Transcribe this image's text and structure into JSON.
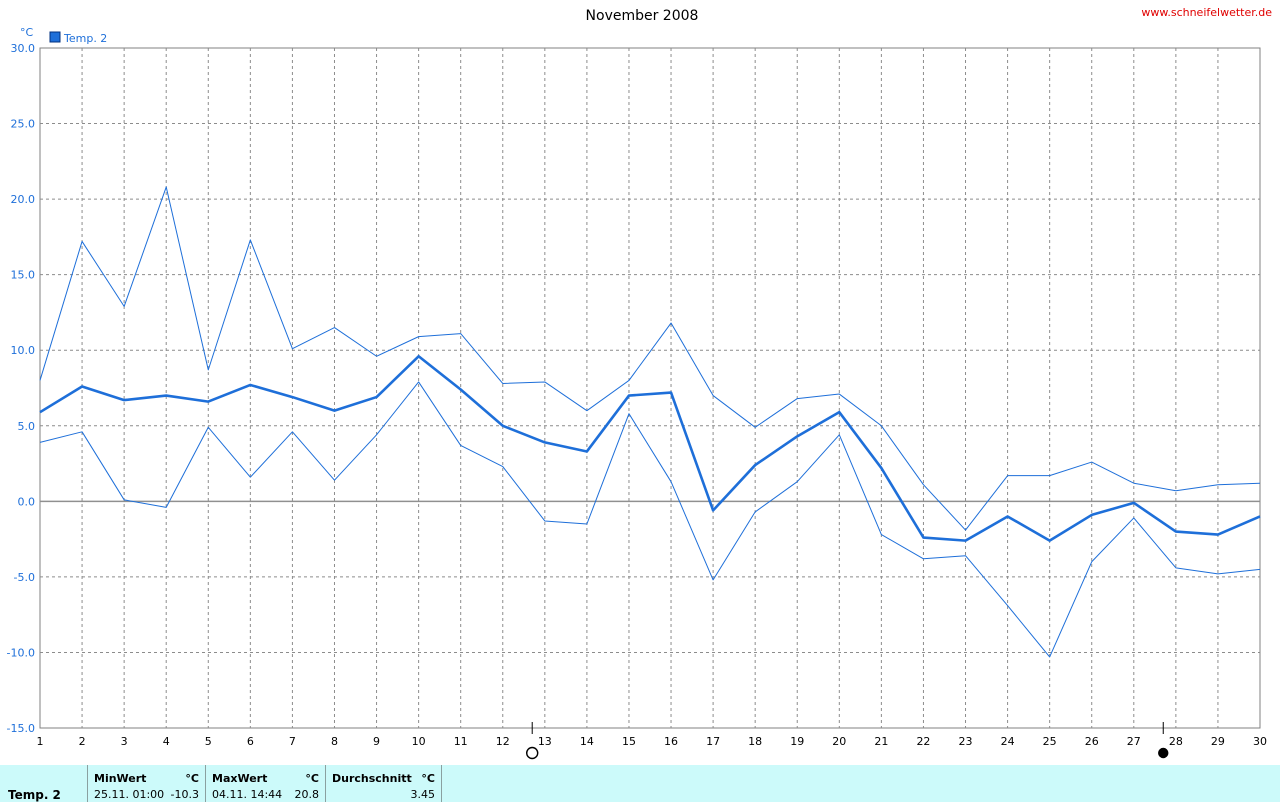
{
  "header": {
    "title": "November 2008",
    "site": "www.schneifelwetter.de",
    "unit": "°C"
  },
  "legend": {
    "label": "Temp. 2",
    "color": "#1e6fd9"
  },
  "chart_data": {
    "type": "line",
    "title": "November 2008",
    "ylabel": "°C",
    "xlabel": "",
    "ylim": [
      -15,
      30
    ],
    "yticks": [
      "30.0",
      "25.0",
      "20.0",
      "15.0",
      "10.0",
      "5.0",
      "0.0",
      "-5.0",
      "-10.0",
      "-15.0"
    ],
    "x": [
      1,
      2,
      3,
      4,
      5,
      6,
      7,
      8,
      9,
      10,
      11,
      12,
      13,
      14,
      15,
      16,
      17,
      18,
      19,
      20,
      21,
      22,
      23,
      24,
      25,
      26,
      27,
      28,
      29,
      30
    ],
    "series": [
      {
        "name": "Temp. 2",
        "role": "max",
        "values": [
          8.0,
          17.2,
          12.9,
          20.8,
          8.7,
          17.3,
          10.1,
          11.5,
          9.6,
          10.9,
          11.1,
          7.8,
          7.9,
          6.0,
          8.0,
          11.8,
          7.0,
          4.9,
          6.8,
          7.1,
          5.0,
          1.1,
          -1.9,
          1.7,
          1.7,
          2.6,
          1.2,
          0.7,
          1.1,
          1.2
        ]
      },
      {
        "name": "Temp. 2",
        "role": "avg",
        "values": [
          5.9,
          7.6,
          6.7,
          7.0,
          6.6,
          7.7,
          6.9,
          6.0,
          6.9,
          9.6,
          7.4,
          5.0,
          3.9,
          3.3,
          7.0,
          7.2,
          -0.6,
          2.4,
          4.3,
          5.9,
          2.2,
          -2.4,
          -2.6,
          -1.0,
          -2.6,
          -0.9,
          -0.1,
          -2.0,
          -2.2,
          -1.0
        ]
      },
      {
        "name": "Temp. 2",
        "role": "min",
        "values": [
          3.9,
          4.6,
          0.1,
          -0.4,
          4.9,
          1.6,
          4.6,
          1.4,
          4.4,
          7.9,
          3.7,
          2.3,
          -1.3,
          -1.5,
          5.8,
          1.3,
          -5.2,
          -0.7,
          1.3,
          4.4,
          -2.2,
          -3.8,
          -3.6,
          -6.9,
          -10.3,
          -4.0,
          -1.1,
          -4.4,
          -4.8,
          -4.5
        ]
      }
    ],
    "moon": [
      {
        "day": 13,
        "phase": "full-moon"
      },
      {
        "day": 28,
        "phase": "new-moon"
      }
    ],
    "grid": true,
    "legend_position": "top-left"
  },
  "footer": {
    "series": "Temp. 2",
    "min": {
      "label": "MinWert",
      "unit": "°C",
      "when": "25.11.  01:00",
      "value": "-10.3"
    },
    "max": {
      "label": "MaxWert",
      "unit": "°C",
      "when": "04.11.  14:44",
      "value": "20.8"
    },
    "avg": {
      "label": "Durchschnitt",
      "unit": "°C",
      "value": "3.45"
    }
  }
}
